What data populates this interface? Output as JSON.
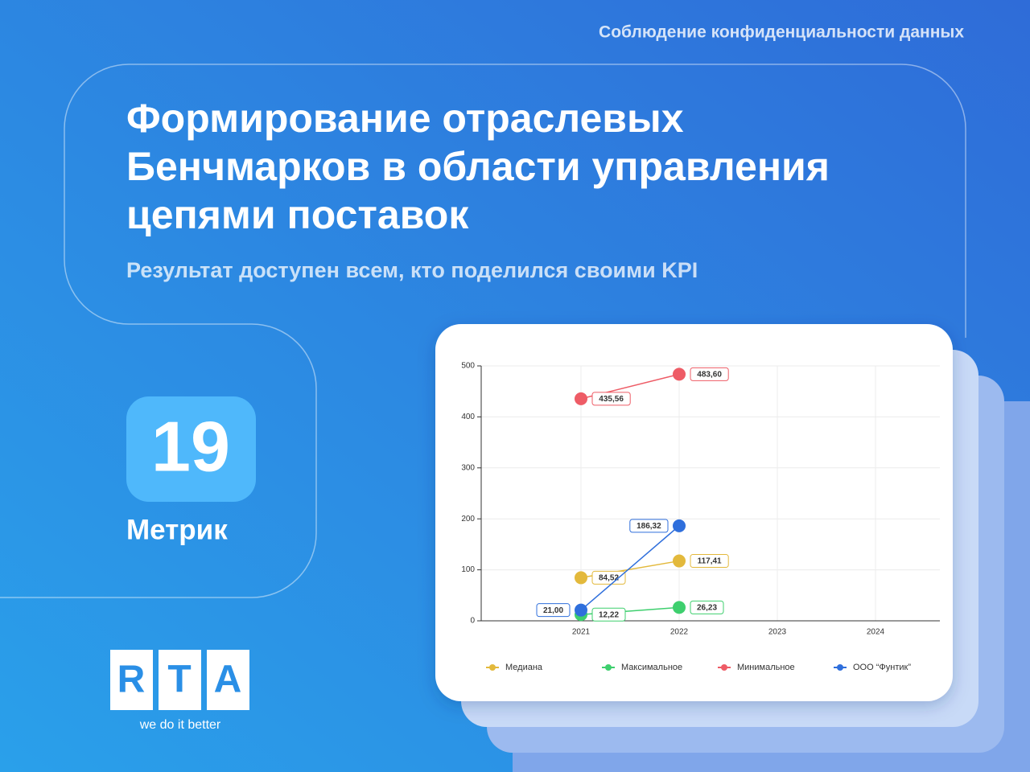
{
  "header": {
    "top_note": "Соблюдение конфиденциальности данных",
    "title_lines": [
      "Формирование отраслевых",
      "Бенчмарков в области управления",
      "цепями поставок"
    ],
    "subtitle": "Результат доступен всем, кто поделился своими KPI"
  },
  "badge": {
    "number": 19,
    "label": "Метрик"
  },
  "logo": {
    "letters": [
      "R",
      "T",
      "A"
    ],
    "tagline": "we do it better"
  },
  "chart_data": {
    "type": "line",
    "categories": [
      "2021",
      "2022",
      "2023",
      "2024"
    ],
    "ylim": [
      0,
      500
    ],
    "yticks": [
      0,
      100,
      200,
      300,
      400,
      500
    ],
    "grid": true,
    "legend": "bottom",
    "series": [
      {
        "name": "Медиана",
        "color": "#e3b93c",
        "values": [
          84.52,
          117.41,
          null,
          null
        ],
        "value_labels": [
          "84,52",
          "117,41",
          null,
          null
        ]
      },
      {
        "name": "Максимальное",
        "color": "#3ecf6e",
        "values": [
          12.22,
          26.23,
          null,
          null
        ],
        "value_labels": [
          "12,22",
          "26,23",
          null,
          null
        ]
      },
      {
        "name": "Минимальное",
        "color": "#ee5c66",
        "values": [
          435.56,
          483.6,
          null,
          null
        ],
        "value_labels": [
          "435,56",
          "483,60",
          null,
          null
        ]
      },
      {
        "name": "ООО “Фунтик”",
        "color": "#2f6fdc",
        "values": [
          21.0,
          186.32,
          null,
          null
        ],
        "value_labels": [
          "21,00",
          "186,32",
          null,
          null
        ]
      }
    ]
  }
}
